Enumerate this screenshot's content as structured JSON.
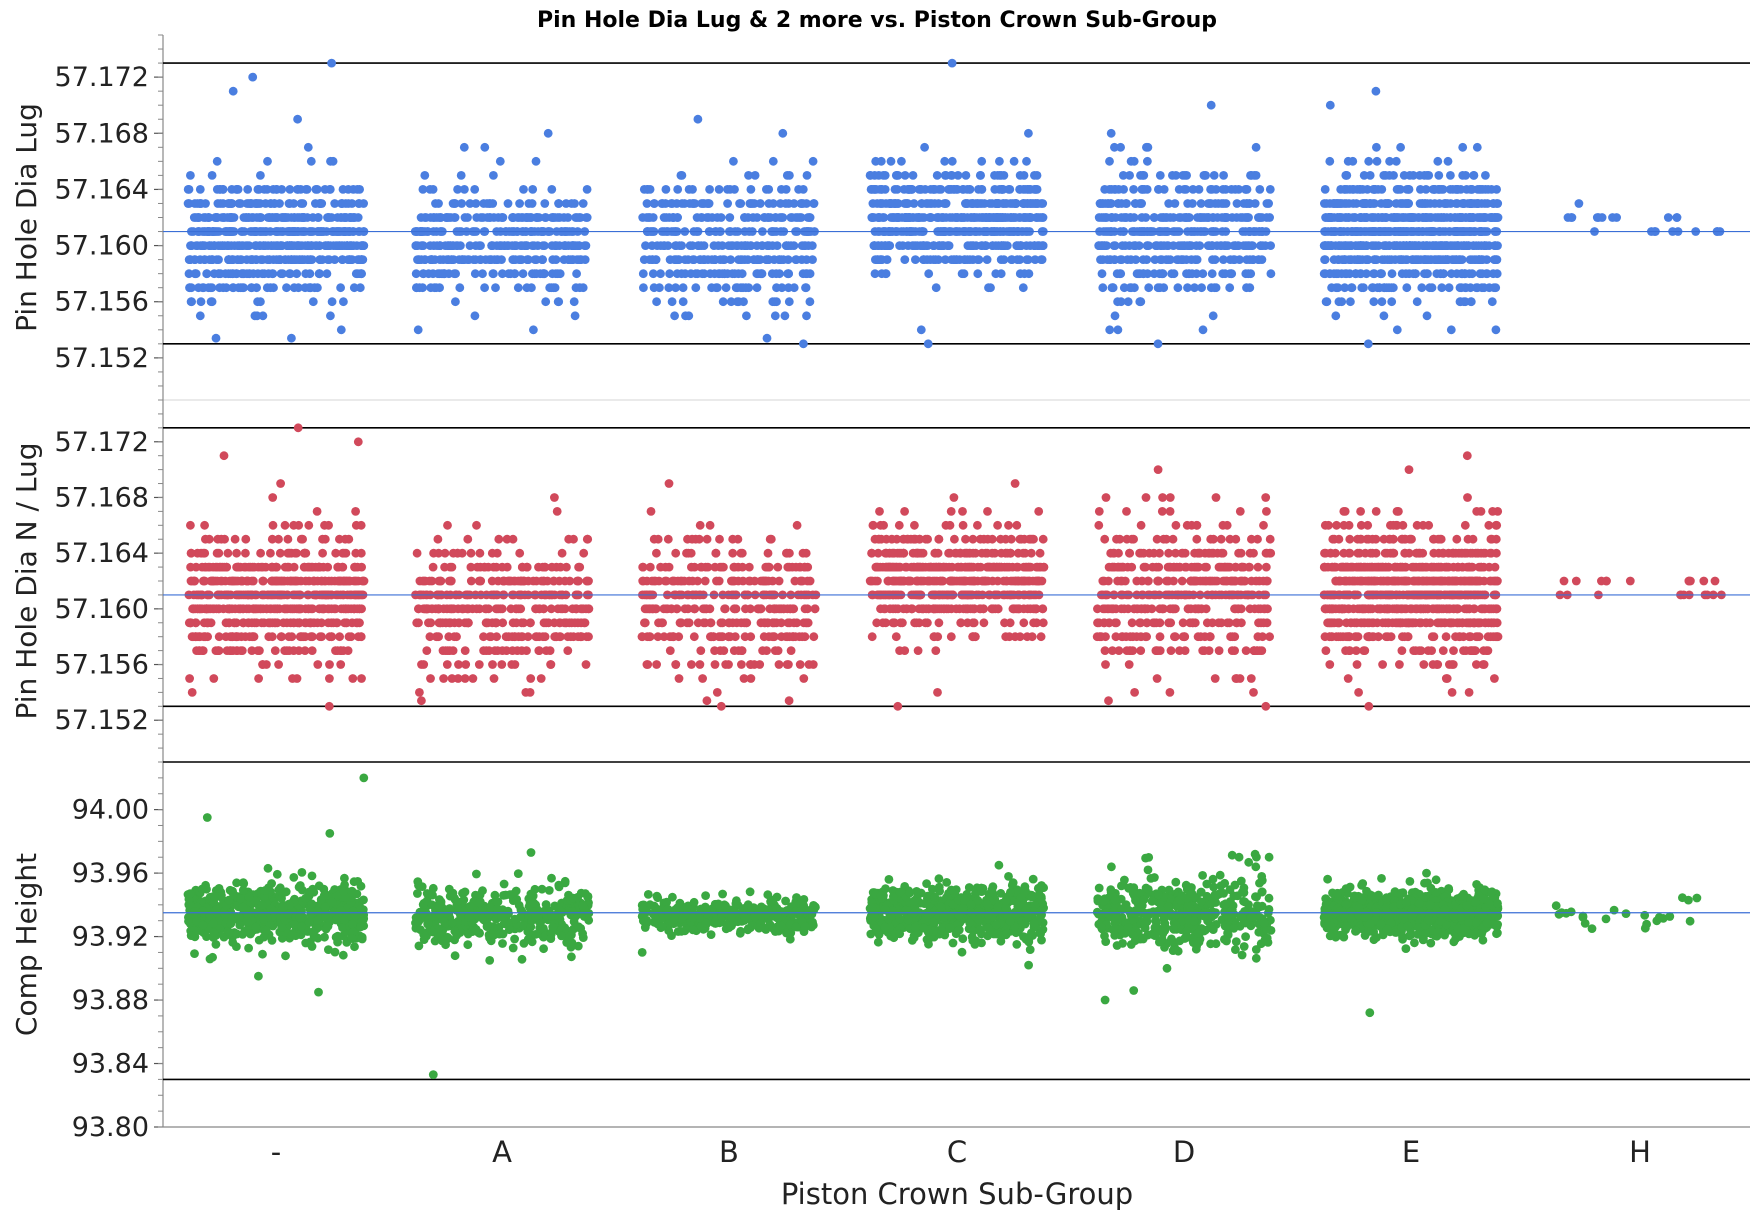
{
  "chart_data": {
    "type": "scatter",
    "title": "Pin Hole Dia Lug & 2 more vs. Piston Crown Sub-Group",
    "xlabel": "Piston Crown Sub-Group",
    "categories": [
      "-",
      "A",
      "B",
      "C",
      "D",
      "E",
      "H"
    ],
    "grid": false,
    "panels": [
      {
        "name": "Pin Hole Dia Lug",
        "ylabel": "Pin Hole Dia Lug",
        "color": "#4a7ee0",
        "ylim": [
          57.149,
          57.175
        ],
        "yticks": [
          "57.152",
          "57.156",
          "57.160",
          "57.164",
          "57.168",
          "57.172"
        ],
        "reference_lines": {
          "upper": 57.173,
          "lower": 57.153,
          "mean": 57.161
        },
        "value_step": 0.001,
        "groups": [
          {
            "category": "-",
            "count": 600,
            "mean": 57.1605,
            "sd": 0.0022,
            "outliers": [
              57.173,
              57.172,
              57.171,
              57.154,
              57.169
            ]
          },
          {
            "category": "A",
            "count": 380,
            "mean": 57.1602,
            "sd": 0.0021,
            "outliers": [
              57.168,
              57.154
            ]
          },
          {
            "category": "B",
            "count": 360,
            "mean": 57.1603,
            "sd": 0.0024,
            "outliers": [
              57.169,
              57.153
            ]
          },
          {
            "category": "C",
            "count": 560,
            "mean": 57.1618,
            "sd": 0.0019,
            "outliers": [
              57.173,
              57.153,
              57.154
            ]
          },
          {
            "category": "D",
            "count": 420,
            "mean": 57.161,
            "sd": 0.0024,
            "outliers": [
              57.17,
              57.153,
              57.154
            ]
          },
          {
            "category": "E",
            "count": 820,
            "mean": 57.1608,
            "sd": 0.0022,
            "outliers": [
              57.171,
              57.17,
              57.153,
              57.154
            ]
          },
          {
            "category": "H",
            "count": 22,
            "mean": 57.1615,
            "sd": 0.0005,
            "outliers": []
          }
        ]
      },
      {
        "name": "Pin Hole Dia N / Lug",
        "ylabel": "Pin Hole Dia N / Lug",
        "color": "#d1495b",
        "ylim": [
          57.149,
          57.175
        ],
        "yticks": [
          "57.152",
          "57.156",
          "57.160",
          "57.164",
          "57.168",
          "57.172"
        ],
        "reference_lines": {
          "upper": 57.173,
          "lower": 57.153,
          "mean": 57.161
        },
        "value_step": 0.001,
        "groups": [
          {
            "category": "-",
            "count": 600,
            "mean": 57.1607,
            "sd": 0.0023,
            "outliers": [
              57.173,
              57.172,
              57.171,
              57.169,
              57.153,
              57.154
            ]
          },
          {
            "category": "A",
            "count": 380,
            "mean": 57.1602,
            "sd": 0.0022,
            "outliers": [
              57.168,
              57.154
            ]
          },
          {
            "category": "B",
            "count": 360,
            "mean": 57.1603,
            "sd": 0.0024,
            "outliers": [
              57.169,
              57.153
            ]
          },
          {
            "category": "C",
            "count": 560,
            "mean": 57.162,
            "sd": 0.002,
            "outliers": [
              57.153,
              57.154
            ]
          },
          {
            "category": "D",
            "count": 420,
            "mean": 57.1612,
            "sd": 0.0026,
            "outliers": [
              57.17,
              57.153
            ]
          },
          {
            "category": "E",
            "count": 820,
            "mean": 57.1612,
            "sd": 0.0023,
            "outliers": [
              57.171,
              57.17,
              57.153,
              57.154
            ]
          },
          {
            "category": "H",
            "count": 22,
            "mean": 57.1615,
            "sd": 0.0005,
            "outliers": []
          }
        ]
      },
      {
        "name": "Comp Height",
        "ylabel": "Comp Height",
        "color": "#3aa841",
        "ylim": [
          93.8,
          94.03
        ],
        "yticks": [
          "93.80",
          "93.84",
          "93.88",
          "93.92",
          "93.96",
          "94.00"
        ],
        "reference_lines": {
          "upper": 94.03,
          "lower": 93.83,
          "mean": 93.935
        },
        "value_step": 0,
        "groups": [
          {
            "category": "-",
            "count": 600,
            "mean": 93.935,
            "sd": 0.01,
            "outliers": [
              94.02,
              93.995,
              93.985,
              93.885,
              93.895
            ]
          },
          {
            "category": "A",
            "count": 380,
            "mean": 93.933,
            "sd": 0.009,
            "outliers": [
              93.973,
              93.833,
              93.905
            ]
          },
          {
            "category": "B",
            "count": 360,
            "mean": 93.933,
            "sd": 0.005,
            "outliers": [
              93.91
            ]
          },
          {
            "category": "C",
            "count": 560,
            "mean": 93.935,
            "sd": 0.009,
            "outliers": [
              93.965,
              93.902
            ]
          },
          {
            "category": "D",
            "count": 420,
            "mean": 93.935,
            "sd": 0.011,
            "outliers": [
              93.97,
              93.88,
              93.886,
              93.9
            ]
          },
          {
            "category": "E",
            "count": 820,
            "mean": 93.934,
            "sd": 0.007,
            "outliers": [
              93.96,
              93.872
            ]
          },
          {
            "category": "H",
            "count": 22,
            "mean": 93.934,
            "sd": 0.004,
            "outliers": [
              93.925
            ]
          }
        ]
      }
    ]
  }
}
